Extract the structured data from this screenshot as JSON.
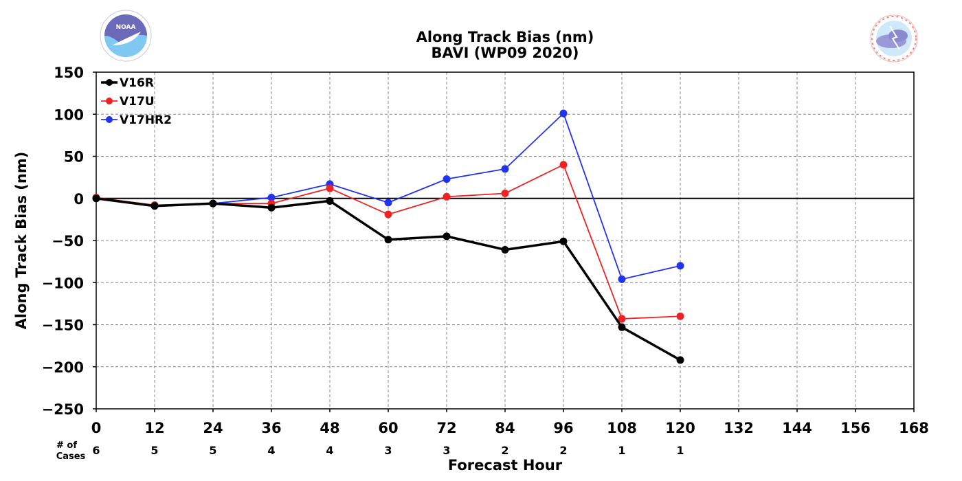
{
  "chart_data": {
    "type": "line",
    "title": "Along Track Bias (nm)",
    "subtitle": "BAVI (WP09 2020)",
    "xlabel": "Forecast Hour",
    "ylabel": "Along Track Bias (nm)",
    "xlim": [
      0,
      168
    ],
    "ylim": [
      -250,
      150
    ],
    "x_ticks": [
      0,
      12,
      24,
      36,
      48,
      60,
      72,
      84,
      96,
      108,
      120,
      132,
      144,
      156,
      168
    ],
    "y_ticks": [
      150,
      100,
      50,
      0,
      -50,
      -100,
      -150,
      -200,
      -250
    ],
    "y_tick_labels": [
      "150",
      "100",
      "50",
      "0",
      "−50",
      "−100",
      "−150",
      "−200",
      "−250"
    ],
    "grid": true,
    "legend_position": "top-left",
    "x": [
      0,
      12,
      24,
      36,
      48,
      60,
      72,
      84,
      96,
      108,
      120
    ],
    "series": [
      {
        "name": "V16R",
        "color": "#000000",
        "values": [
          0,
          -9,
          -6,
          -11,
          -3,
          -49,
          -45,
          -61,
          -51,
          -153,
          -192
        ]
      },
      {
        "name": "V17U",
        "color": "#ee2222",
        "values": [
          1,
          -8,
          -6,
          -6,
          12,
          -19,
          2,
          6,
          40,
          -143,
          -140
        ]
      },
      {
        "name": "V17HR2",
        "color": "#2233ee",
        "values": [
          0,
          -9,
          -6,
          1,
          17,
          -5,
          23,
          35,
          101,
          -96,
          -80
        ]
      }
    ],
    "cases_label_line1": "# of",
    "cases_label_line2": "Cases",
    "cases": [
      6,
      5,
      5,
      4,
      4,
      3,
      3,
      2,
      2,
      1,
      1
    ]
  },
  "logos": {
    "left": "noaa-logo",
    "right": "nws-logo"
  }
}
